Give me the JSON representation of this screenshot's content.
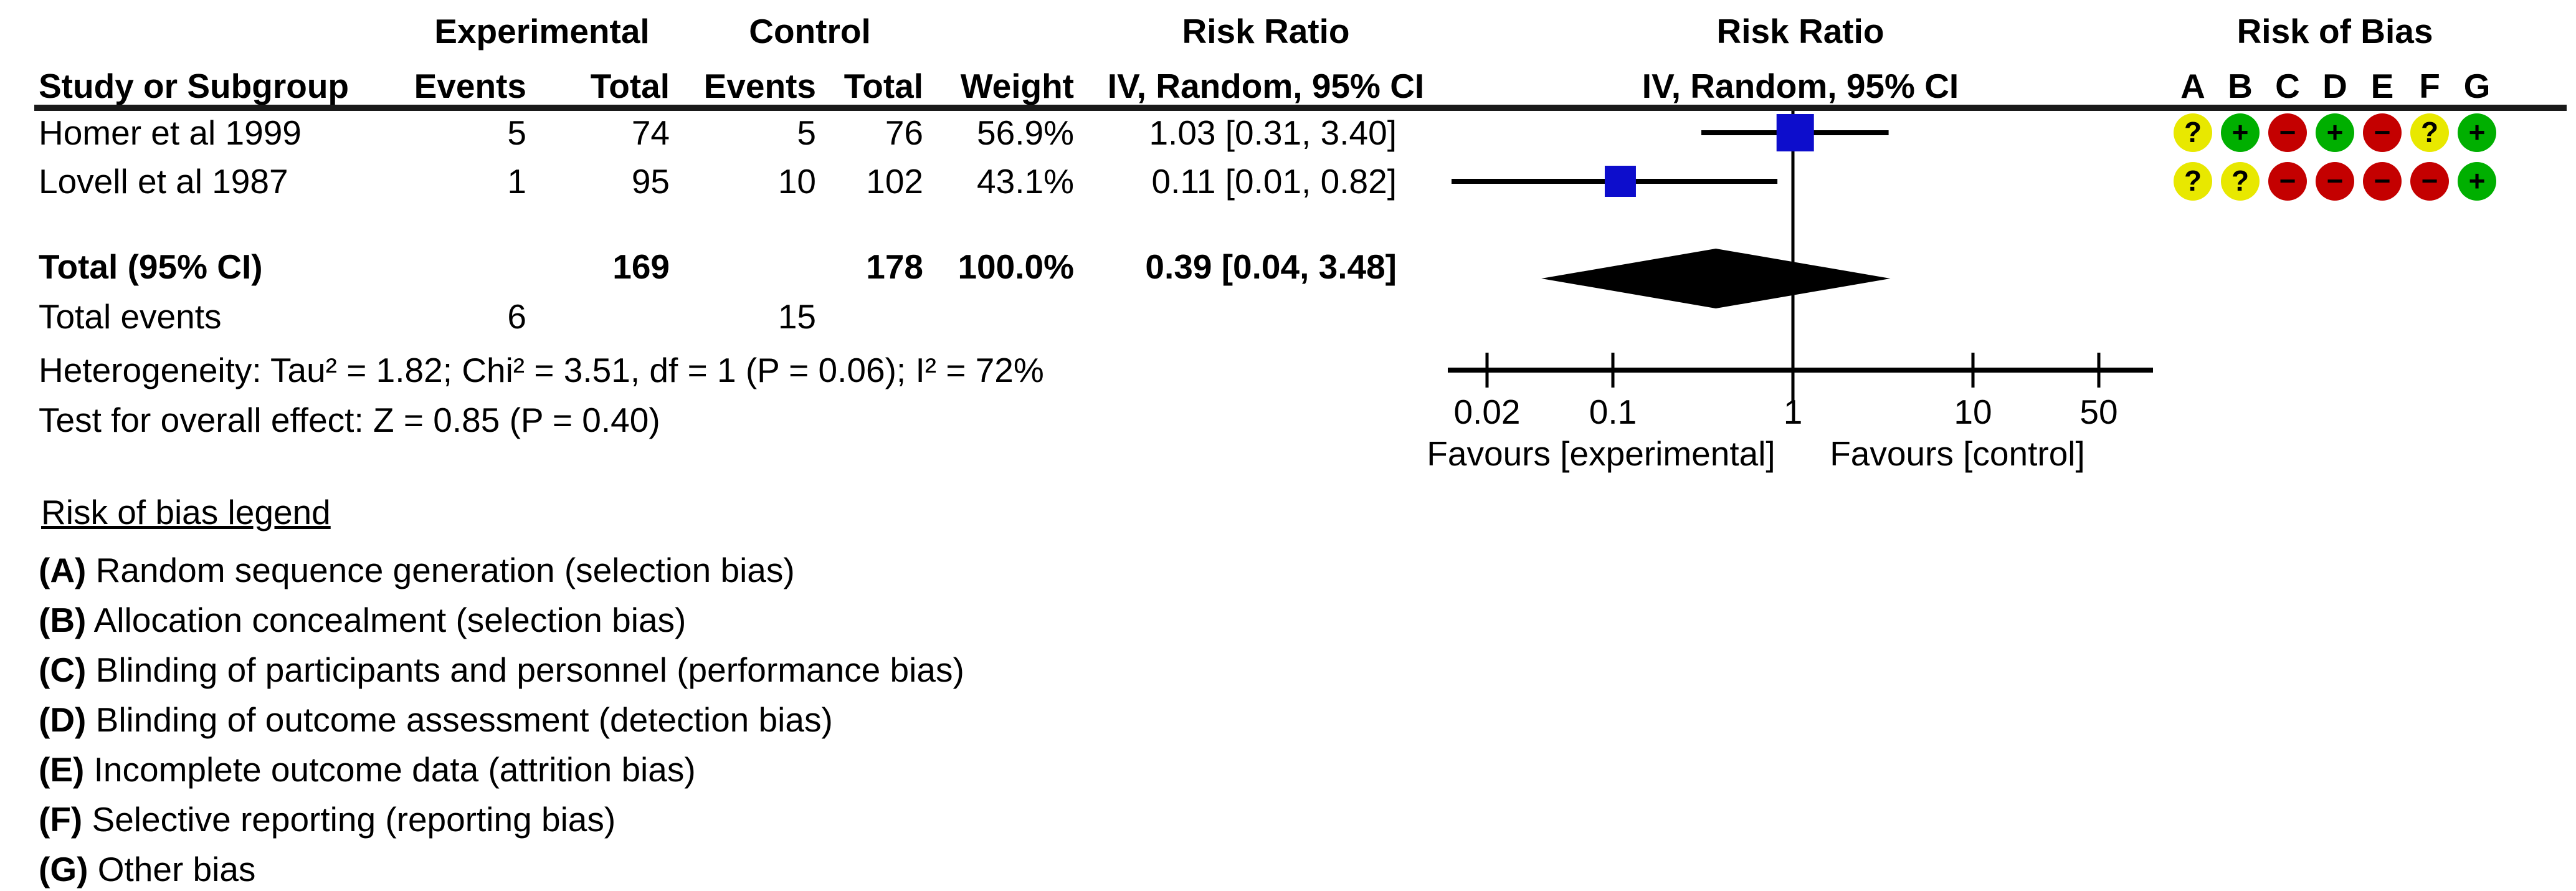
{
  "table": {
    "header1": {
      "experimental": "Experimental",
      "control": "Control",
      "risk_ratio_text": "Risk Ratio",
      "risk_ratio_plot": "Risk Ratio",
      "risk_of_bias": "Risk of Bias"
    },
    "header2": {
      "study": "Study or Subgroup",
      "events_exp": "Events",
      "total_exp": "Total",
      "events_ctl": "Events",
      "total_ctl": "Total",
      "weight": "Weight",
      "ci_text": "IV, Random, 95% CI",
      "ci_plot": "IV, Random, 95% CI"
    },
    "rob_letters": [
      "A",
      "B",
      "C",
      "D",
      "E",
      "F",
      "G"
    ],
    "rows": [
      {
        "study": "Homer et al 1999",
        "events_exp": "5",
        "total_exp": "74",
        "events_ctl": "5",
        "total_ctl": "76",
        "weight": "56.9%",
        "rr": "1.03 [0.31, 3.40]",
        "rob": [
          "unclear",
          "low",
          "high",
          "low",
          "high",
          "unclear",
          "low"
        ]
      },
      {
        "study": "Lovell et al 1987",
        "events_exp": "1",
        "total_exp": "95",
        "events_ctl": "10",
        "total_ctl": "102",
        "weight": "43.1%",
        "rr": "0.11 [0.01, 0.82]",
        "rob": [
          "unclear",
          "unclear",
          "high",
          "high",
          "high",
          "high",
          "low"
        ]
      }
    ],
    "total": {
      "label": "Total (95% CI)",
      "total_exp": "169",
      "total_ctl": "178",
      "weight": "100.0%",
      "rr": "0.39 [0.04, 3.48]"
    },
    "total_events": {
      "label": "Total events",
      "exp": "6",
      "ctl": "15"
    },
    "heterogeneity": "Heterogeneity: Tau² = 1.82; Chi² = 3.51, df = 1 (P = 0.06); I² = 72%",
    "overall_effect": "Test for overall effect: Z = 0.85 (P = 0.40)"
  },
  "plot": {
    "favours_left": "Favours [experimental]",
    "favours_right": "Favours [control]"
  },
  "legend": {
    "title": "Risk of bias legend",
    "items": [
      {
        "key": "(A)",
        "text": "Random sequence generation (selection bias)"
      },
      {
        "key": "(B)",
        "text": "Allocation concealment (selection bias)"
      },
      {
        "key": "(C)",
        "text": "Blinding of participants and personnel (performance bias)"
      },
      {
        "key": "(D)",
        "text": "Blinding of outcome assessment (detection bias)"
      },
      {
        "key": "(E)",
        "text": "Incomplete outcome data (attrition bias)"
      },
      {
        "key": "(F)",
        "text": "Selective reporting (reporting bias)"
      },
      {
        "key": "(G)",
        "text": "Other bias"
      }
    ]
  },
  "colors": {
    "marker_blue": "#0D0DCC",
    "rob_green": "#00AF00",
    "rob_red": "#C40000",
    "rob_yellow": "#E8E800",
    "line_black": "#000000"
  },
  "rob_map": {
    "low": {
      "symbol": "+",
      "color_key": "rob_green"
    },
    "high": {
      "symbol": "−",
      "color_key": "rob_red"
    },
    "unclear": {
      "symbol": "?",
      "color_key": "rob_yellow"
    }
  },
  "chart_data": {
    "type": "forest",
    "effect_measure": "Risk Ratio",
    "method": "IV, Random, 95% CI",
    "x_scale": "log",
    "ticks": [
      0.02,
      0.1,
      1,
      10,
      50
    ],
    "tick_labels": [
      "0.02",
      "0.1",
      "1",
      "10",
      "50"
    ],
    "studies": [
      {
        "name": "Homer et al 1999",
        "events_exp": 5,
        "total_exp": 74,
        "events_ctl": 5,
        "total_ctl": 76,
        "weight_pct": 56.9,
        "rr": 1.03,
        "ci_low": 0.31,
        "ci_high": 3.4
      },
      {
        "name": "Lovell et al 1987",
        "events_exp": 1,
        "total_exp": 95,
        "events_ctl": 10,
        "total_ctl": 102,
        "weight_pct": 43.1,
        "rr": 0.11,
        "ci_low": 0.01,
        "ci_high": 0.82
      }
    ],
    "total": {
      "label": "Total (95% CI)",
      "total_exp": 169,
      "total_ctl": 178,
      "weight_pct": 100.0,
      "rr": 0.39,
      "ci_low": 0.04,
      "ci_high": 3.48
    },
    "total_events": {
      "exp": 6,
      "ctl": 15
    },
    "heterogeneity": {
      "tau2": 1.82,
      "chi2": 3.51,
      "df": 1,
      "p": 0.06,
      "i2_pct": 72
    },
    "overall_effect": {
      "z": 0.85,
      "p": 0.4
    },
    "favours_left": "Favours [experimental]",
    "favours_right": "Favours [control]",
    "legend_position": "bottom-left",
    "grid": false
  }
}
